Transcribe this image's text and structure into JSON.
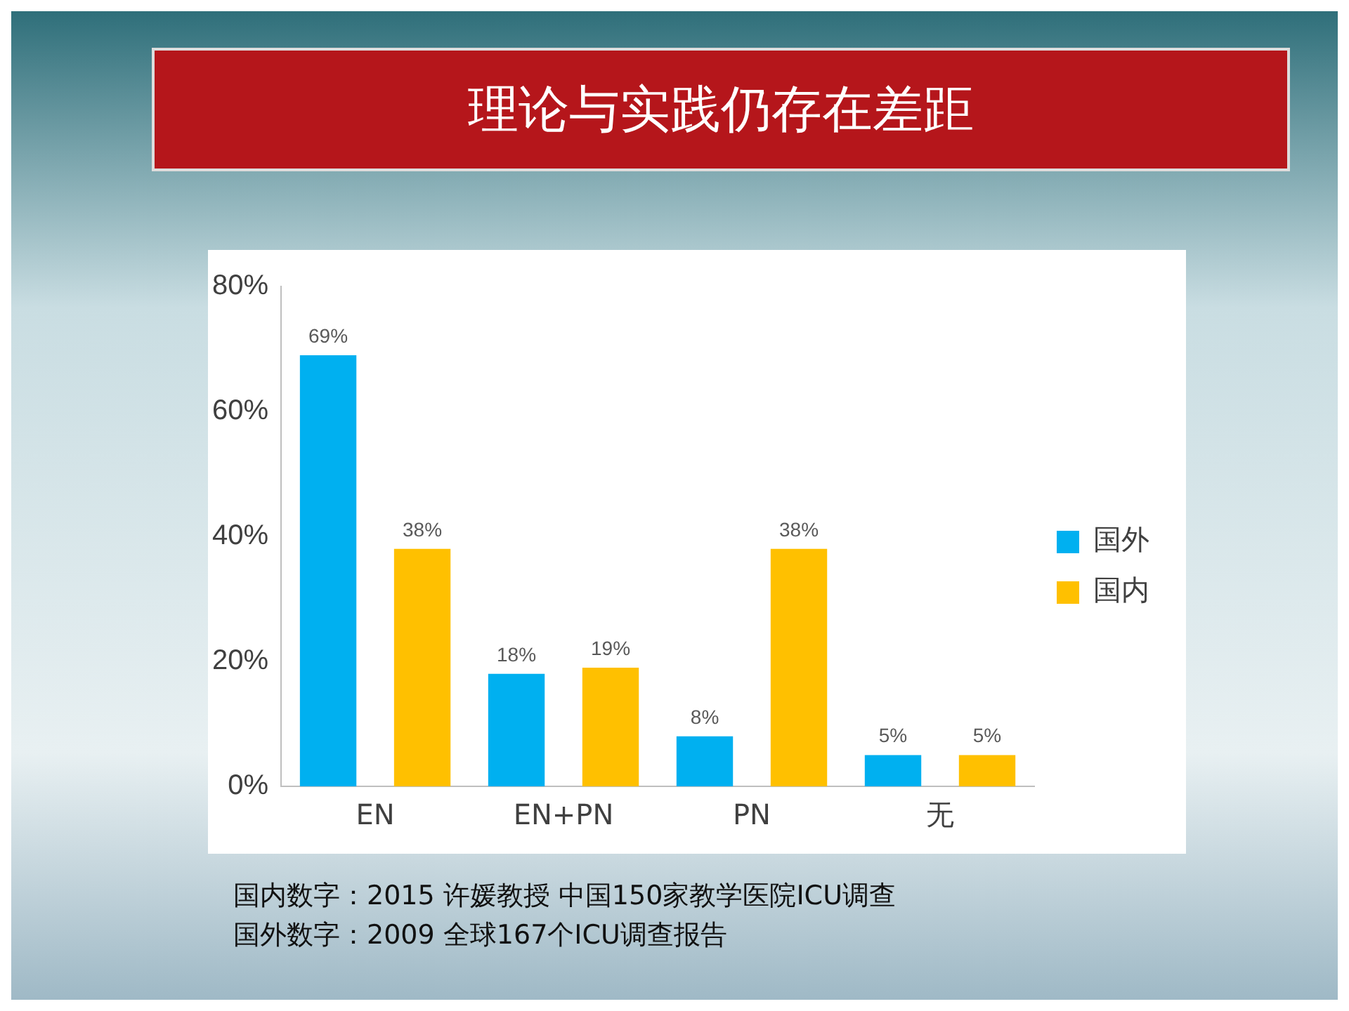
{
  "chart_data": {
    "type": "bar",
    "title": "理论与实践仍存在差距",
    "categories": [
      "EN",
      "EN+PN",
      "PN",
      "无"
    ],
    "series": [
      {
        "name": "国外",
        "color": "#00b0f0",
        "values": [
          69,
          18,
          8,
          5
        ],
        "value_labels": [
          "69%",
          "18%",
          "8%",
          "5%"
        ]
      },
      {
        "name": "国内",
        "color": "#ffc000",
        "values": [
          38,
          19,
          38,
          5
        ],
        "value_labels": [
          "38%",
          "19%",
          "38%",
          "5%"
        ]
      }
    ],
    "ylim": [
      0,
      80
    ],
    "yticks": [
      {
        "value": 0,
        "label": "0%"
      },
      {
        "value": 20,
        "label": "20%"
      },
      {
        "value": 40,
        "label": "40%"
      },
      {
        "value": 60,
        "label": "60%"
      },
      {
        "value": 80,
        "label": "80%"
      }
    ],
    "grid": false,
    "legend": "right",
    "annotations": [
      "国内数字：2015 许媛教授 中国150家教学医院ICU调查",
      "国外数字：2009 全球167个ICU调查报告"
    ]
  }
}
